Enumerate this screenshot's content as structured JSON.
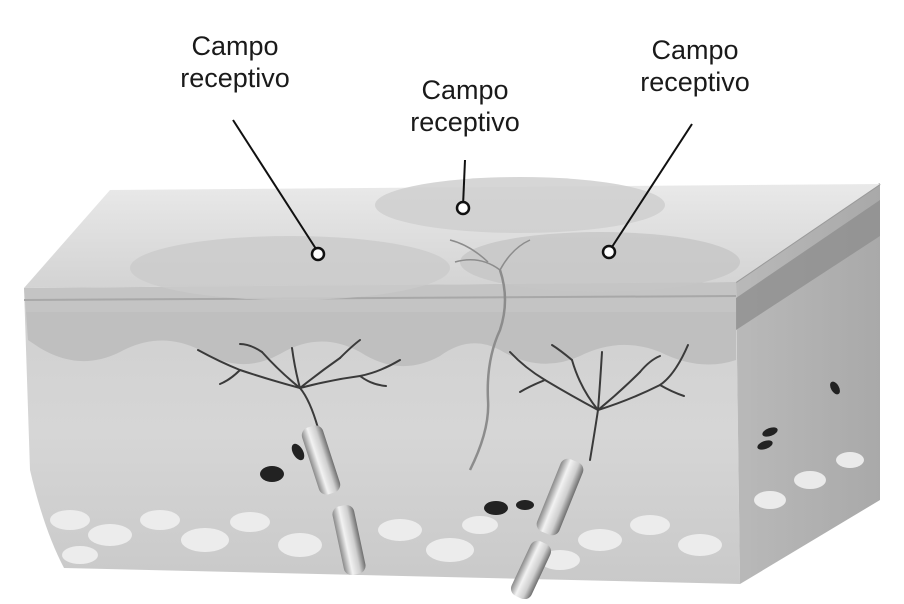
{
  "labels": [
    {
      "line1": "Campo",
      "line2": "receptivo"
    },
    {
      "line1": "Campo",
      "line2": "receptivo"
    },
    {
      "line1": "Campo",
      "line2": "receptivo"
    }
  ]
}
